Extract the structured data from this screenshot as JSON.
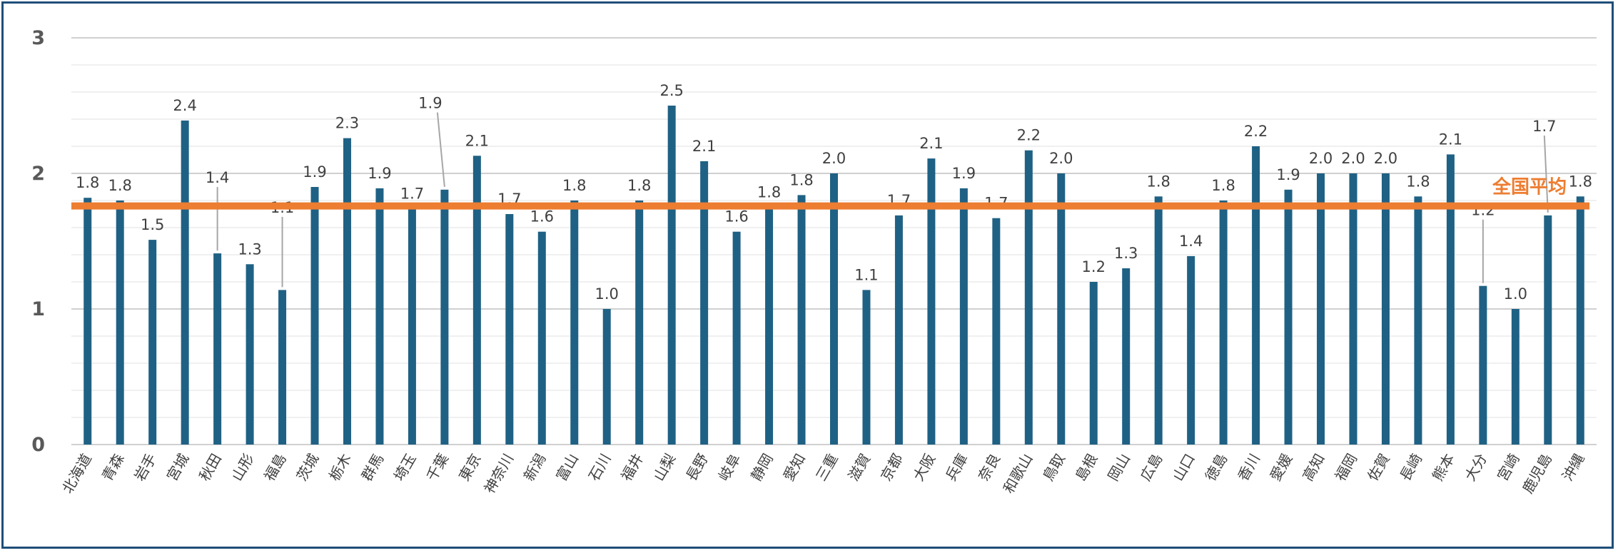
{
  "chart_data": {
    "type": "bar",
    "title": "",
    "xlabel": "",
    "ylabel": "",
    "ylim": [
      0,
      3
    ],
    "yticks": [
      "0",
      "1",
      "2",
      "3"
    ],
    "grid": true,
    "bar_color": "#1f6184",
    "categories": [
      "北海道",
      "青森",
      "岩手",
      "宮城",
      "秋田",
      "山形",
      "福島",
      "茨城",
      "栃木",
      "群馬",
      "埼玉",
      "千葉",
      "東京",
      "神奈川",
      "新潟",
      "富山",
      "石川",
      "福井",
      "山梨",
      "長野",
      "岐阜",
      "静岡",
      "愛知",
      "三重",
      "滋賀",
      "京都",
      "大阪",
      "兵庫",
      "奈良",
      "和歌山",
      "鳥取",
      "島根",
      "岡山",
      "広島",
      "山口",
      "徳島",
      "香川",
      "愛媛",
      "高知",
      "福岡",
      "佐賀",
      "長崎",
      "熊本",
      "大分",
      "宮崎",
      "鹿児島",
      "沖縄"
    ],
    "values": [
      1.82,
      1.8,
      1.51,
      2.39,
      1.41,
      1.33,
      1.14,
      1.9,
      2.26,
      1.89,
      1.74,
      1.88,
      2.13,
      1.7,
      1.57,
      1.8,
      1.0,
      1.8,
      2.5,
      2.09,
      1.57,
      1.75,
      1.84,
      2.0,
      1.14,
      1.69,
      2.11,
      1.89,
      1.67,
      2.17,
      2.0,
      1.2,
      1.3,
      1.83,
      1.39,
      1.8,
      2.2,
      1.88,
      2.0,
      2.0,
      2.0,
      1.83,
      2.14,
      1.17,
      1.0,
      1.69,
      1.83
    ],
    "data_labels": [
      "1.8",
      "1.8",
      "1.5",
      "2.4",
      "1.4",
      "1.3",
      "1.1",
      "1.9",
      "2.3",
      "1.9",
      "1.7",
      "1.9",
      "2.1",
      "1.7",
      "1.6",
      "1.8",
      "1.0",
      "1.8",
      "2.5",
      "2.1",
      "1.6",
      "1.8",
      "1.8",
      "2.0",
      "1.1",
      "1.7",
      "2.1",
      "1.9",
      "1.7",
      "2.2",
      "2.0",
      "1.2",
      "1.3",
      "1.8",
      "1.4",
      "1.8",
      "2.2",
      "1.9",
      "2.0",
      "2.0",
      "2.0",
      "1.8",
      "2.1",
      "1.2",
      "1.0",
      "1.7",
      "1.8"
    ],
    "reference_line": {
      "label": "全国平均",
      "value": 1.76,
      "color": "#ed7d31"
    }
  }
}
